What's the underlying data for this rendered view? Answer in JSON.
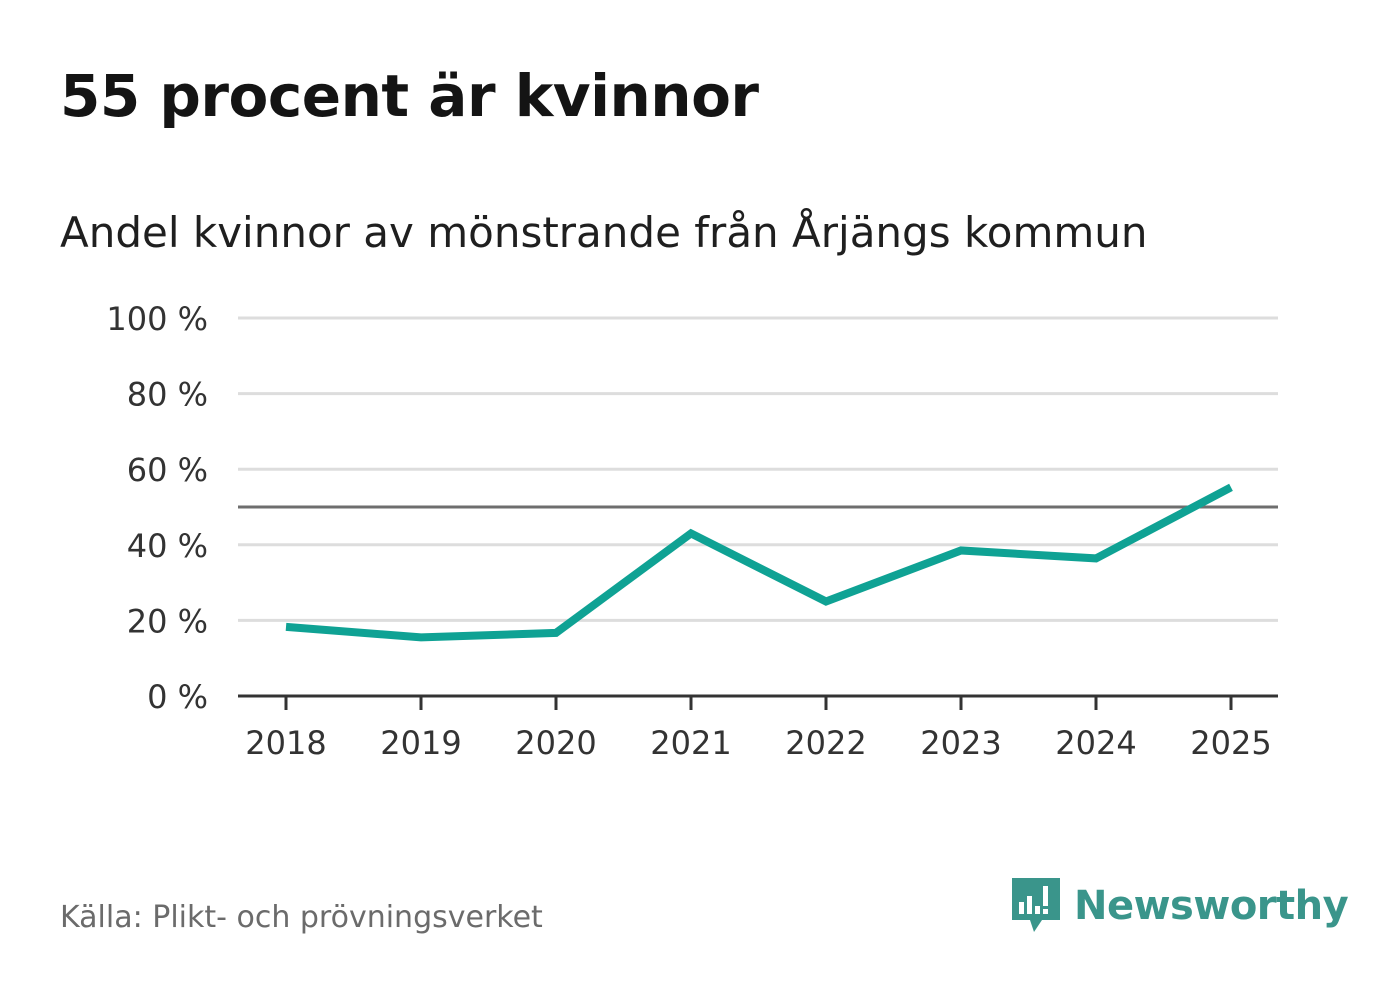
{
  "header": {
    "title": "55 procent är kvinnor",
    "subtitle": "Andel kvinnor av mönstrande från Årjängs kommun"
  },
  "footer": {
    "source": "Källa: Plikt- och prövningsverket",
    "brand": "Newsworthy"
  },
  "colors": {
    "line": "#0fa294",
    "grid": "#dddddd",
    "reference": "#6e6e6e",
    "axis": "#333333",
    "brand": "#3a958b"
  },
  "chart_data": {
    "type": "line",
    "title": "55 procent är kvinnor",
    "subtitle": "Andel kvinnor av mönstrande från Årjängs kommun",
    "xlabel": "",
    "ylabel": "",
    "categories": [
      "2018",
      "2019",
      "2020",
      "2021",
      "2022",
      "2023",
      "2024",
      "2025"
    ],
    "series": [
      {
        "name": "Andel kvinnor",
        "values": [
          18.3,
          15.5,
          16.7,
          43.0,
          25.0,
          38.5,
          36.4,
          55.2
        ]
      }
    ],
    "ylim": [
      0,
      100
    ],
    "yticks": [
      0,
      20,
      40,
      60,
      80,
      100
    ],
    "ytick_labels": [
      "0 %",
      "20 %",
      "40 %",
      "60 %",
      "80 %",
      "100 %"
    ],
    "reference_line": 50,
    "grid": true,
    "legend": "none"
  }
}
